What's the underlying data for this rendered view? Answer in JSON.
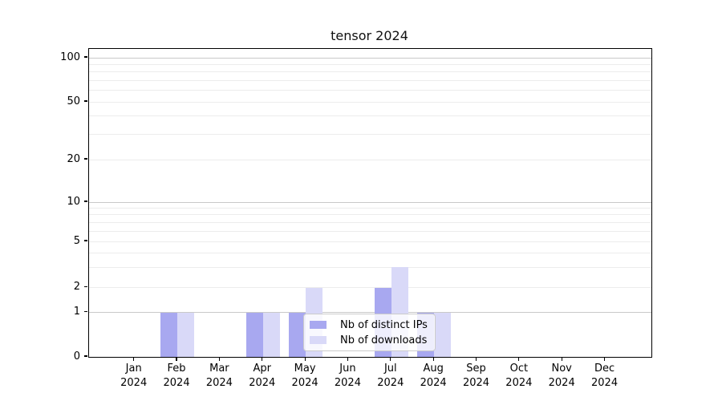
{
  "chart_data": {
    "type": "bar",
    "title": "tensor 2024",
    "categories": [
      "Jan",
      "Feb",
      "Mar",
      "Apr",
      "May",
      "Jun",
      "Jul",
      "Aug",
      "Sep",
      "Oct",
      "Nov",
      "Dec"
    ],
    "category_year_line": "2024",
    "series": [
      {
        "name": "Nb of distinct IPs",
        "color": "#a8a8f0",
        "values": [
          0,
          1,
          0,
          1,
          1,
          0,
          2,
          1,
          0,
          0,
          0,
          0
        ]
      },
      {
        "name": "Nb of downloads",
        "color": "#d9d9f8",
        "values": [
          0,
          1,
          0,
          1,
          2,
          0,
          3,
          1,
          0,
          0,
          0,
          0
        ]
      }
    ],
    "xlabel": "",
    "ylabel": "",
    "yscale": "symlog",
    "ylim": [
      0,
      115
    ],
    "yticks": [
      0,
      1,
      2,
      5,
      10,
      20,
      50,
      100
    ],
    "grid_major": [
      1,
      10,
      100
    ],
    "grid_minor": [
      2,
      3,
      4,
      5,
      6,
      7,
      8,
      9,
      20,
      30,
      40,
      50,
      60,
      70,
      80,
      90
    ],
    "legend": {
      "items": [
        "Nb of distinct IPs",
        "Nb of downloads"
      ],
      "position": "lower center"
    }
  },
  "colors": {
    "bar_distinct_ips": "#a8a8f0",
    "bar_downloads": "#d9d9f8",
    "grid_major": "#c9c9c9",
    "grid_minor": "#ececec",
    "spine": "#000000",
    "text": "#000000",
    "legend_border": "#cbcbcb",
    "legend_bg": "rgba(255,255,255,0.8)",
    "background": "#ffffff"
  }
}
